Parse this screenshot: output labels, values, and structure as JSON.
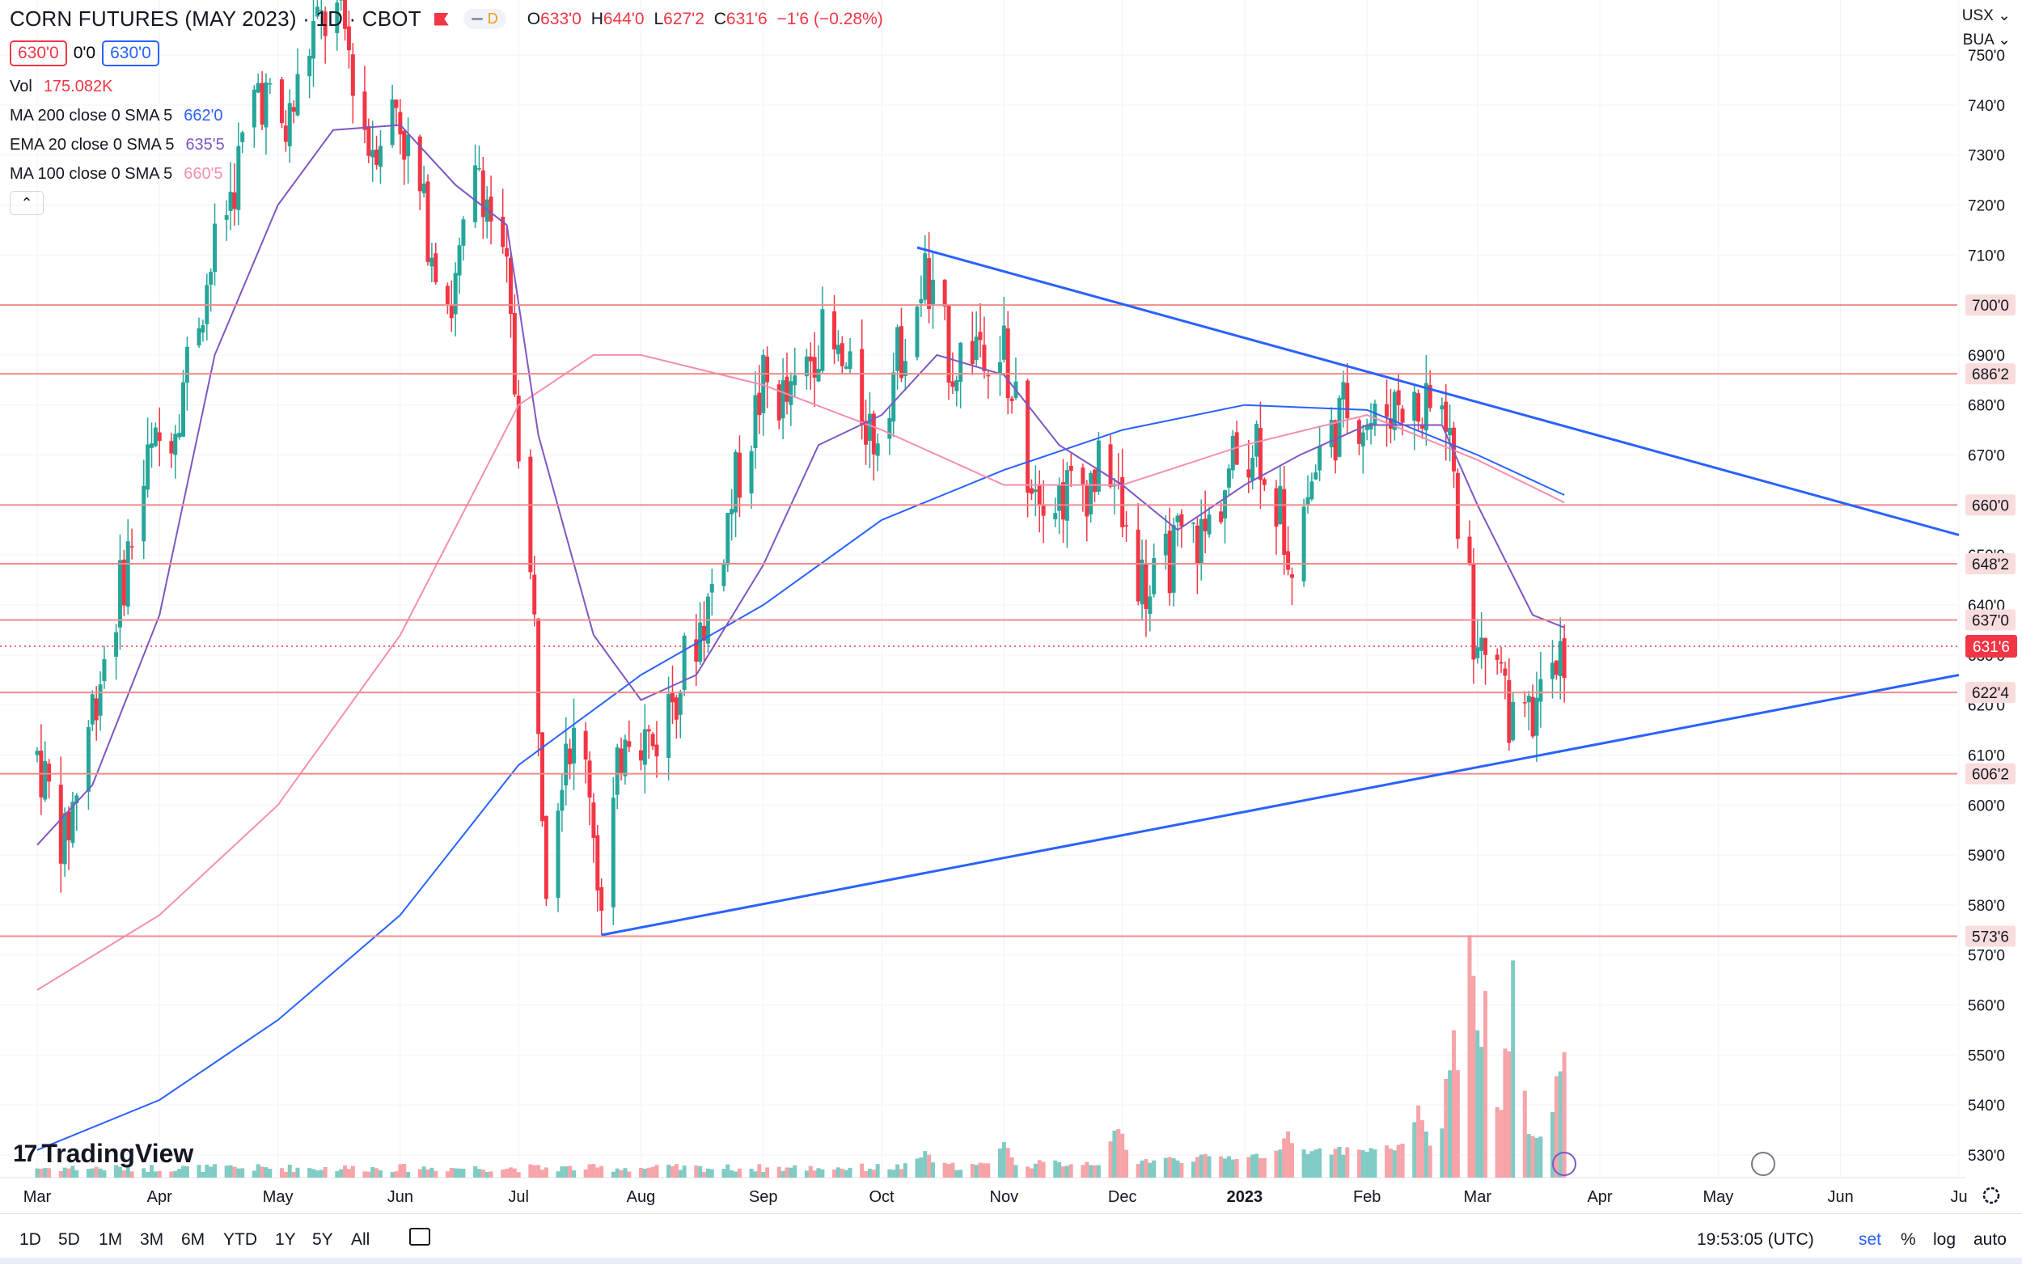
{
  "header": {
    "symbol": "CORN FUTURES (MAY 2023) · 1D · CBOT",
    "open_label": "O",
    "open": "633'0",
    "high_label": "H",
    "high": "644'0",
    "low_label": "L",
    "low": "627'2",
    "close_label": "C",
    "close": "631'6",
    "change": "−1'6 (−0.28%)",
    "session_badge": "D"
  },
  "price_boxes": {
    "sell": "630'0",
    "spread": "0'0",
    "buy": "630'0"
  },
  "indicators": [
    {
      "label": "Vol",
      "value": "175.082K",
      "color": "#f23645"
    },
    {
      "label": "MA 200 close 0 SMA 5",
      "value": "662'0",
      "color": "#2962ff"
    },
    {
      "label": "EMA 20 close 0 SMA 5",
      "value": "635'5",
      "color": "#7e57c2"
    },
    {
      "label": "MA 100 close 0 SMA 5",
      "value": "660'5",
      "color": "#f48fb1"
    }
  ],
  "collapse_glyph": "⌃",
  "top_right": {
    "currency": "USX ⌄",
    "unit": "BUA ⌄"
  },
  "brand": {
    "logo_mark": "17",
    "logo_text": "TradingView"
  },
  "bottom_bar": {
    "timeframes": [
      "1D",
      "5D",
      "1M",
      "3M",
      "6M",
      "YTD",
      "1Y",
      "5Y",
      "All"
    ],
    "clock": "19:53:05 (UTC)",
    "options": [
      "set",
      "%",
      "log",
      "auto"
    ]
  },
  "colors": {
    "up": "#26a69a",
    "down": "#f23645",
    "vol_up": "#80cbc4",
    "vol_down": "#f7a4a9",
    "hline": "#f28b8b",
    "trendline": "#2962ff",
    "ma200": "#2962ff",
    "ema20": "#7e57c2",
    "ma100": "#f48fb1",
    "grid": "#f0f3fa"
  },
  "chart_data": {
    "type": "candlestick",
    "y_axis": {
      "min": 525,
      "max": 752,
      "ticks": [
        530,
        540,
        550,
        560,
        570,
        580,
        590,
        600,
        610,
        620,
        630,
        640,
        650,
        660,
        670,
        680,
        690,
        700,
        710,
        720,
        730,
        740,
        750
      ]
    },
    "x_axis": {
      "labels": [
        {
          "label": "Mar",
          "date": "2022-03-01"
        },
        {
          "label": "Apr",
          "date": "2022-04-01"
        },
        {
          "label": "May",
          "date": "2022-05-01"
        },
        {
          "label": "Jun",
          "date": "2022-06-01"
        },
        {
          "label": "Jul",
          "date": "2022-07-01"
        },
        {
          "label": "Aug",
          "date": "2022-08-01"
        },
        {
          "label": "Sep",
          "date": "2022-09-01"
        },
        {
          "label": "Oct",
          "date": "2022-10-01"
        },
        {
          "label": "Nov",
          "date": "2022-11-01"
        },
        {
          "label": "Dec",
          "date": "2022-12-01"
        },
        {
          "label": "2023",
          "date": "2023-01-01"
        },
        {
          "label": "Feb",
          "date": "2023-02-01"
        },
        {
          "label": "Mar",
          "date": "2023-03-01"
        },
        {
          "label": "Apr",
          "date": "2023-04-01"
        },
        {
          "label": "May",
          "date": "2023-05-01"
        },
        {
          "label": "Jun",
          "date": "2023-06-01"
        },
        {
          "label": "Ju",
          "date": "2023-07-01"
        }
      ]
    },
    "horizontal_levels": [
      {
        "price": 700,
        "label": "700'0"
      },
      {
        "price": 686.25,
        "label": "686'2"
      },
      {
        "price": 660,
        "label": "660'0"
      },
      {
        "price": 648.25,
        "label": "648'2"
      },
      {
        "price": 637,
        "label": "637'0"
      },
      {
        "price": 622.5,
        "label": "622'4"
      },
      {
        "price": 606.25,
        "label": "606'2"
      },
      {
        "price": 573.75,
        "label": "573'6"
      }
    ],
    "last_price": {
      "price": 631.75,
      "label": "631'6"
    },
    "trendlines": [
      {
        "start": {
          "date": "2022-10-10",
          "price": 711.5
        },
        "end": {
          "date": "2023-07-01",
          "price": 654
        }
      },
      {
        "start": {
          "date": "2022-07-22",
          "price": 574
        },
        "end": {
          "date": "2023-07-01",
          "price": 626
        }
      }
    ],
    "price_path": [
      {
        "date": "2022-03-01",
        "price": 610
      },
      {
        "date": "2022-03-08",
        "price": 592
      },
      {
        "date": "2022-03-15",
        "price": 620
      },
      {
        "date": "2022-03-22",
        "price": 643
      },
      {
        "date": "2022-03-29",
        "price": 668
      },
      {
        "date": "2022-04-05",
        "price": 678
      },
      {
        "date": "2022-04-12",
        "price": 702
      },
      {
        "date": "2022-04-19",
        "price": 722
      },
      {
        "date": "2022-04-26",
        "price": 744
      },
      {
        "date": "2022-05-03",
        "price": 734
      },
      {
        "date": "2022-05-10",
        "price": 755
      },
      {
        "date": "2022-05-17",
        "price": 758
      },
      {
        "date": "2022-05-24",
        "price": 732
      },
      {
        "date": "2022-05-31",
        "price": 740
      },
      {
        "date": "2022-06-07",
        "price": 718
      },
      {
        "date": "2022-06-14",
        "price": 700
      },
      {
        "date": "2022-06-21",
        "price": 728
      },
      {
        "date": "2022-06-28",
        "price": 704
      },
      {
        "date": "2022-07-05",
        "price": 635
      },
      {
        "date": "2022-07-08",
        "price": 588
      },
      {
        "date": "2022-07-13",
        "price": 615
      },
      {
        "date": "2022-07-19",
        "price": 605
      },
      {
        "date": "2022-07-22",
        "price": 578
      },
      {
        "date": "2022-07-28",
        "price": 618
      },
      {
        "date": "2022-08-04",
        "price": 612
      },
      {
        "date": "2022-08-11",
        "price": 626
      },
      {
        "date": "2022-08-18",
        "price": 640
      },
      {
        "date": "2022-08-25",
        "price": 664
      },
      {
        "date": "2022-09-01",
        "price": 684
      },
      {
        "date": "2022-09-08",
        "price": 680
      },
      {
        "date": "2022-09-15",
        "price": 694
      },
      {
        "date": "2022-09-22",
        "price": 686
      },
      {
        "date": "2022-09-29",
        "price": 674
      },
      {
        "date": "2022-10-06",
        "price": 692
      },
      {
        "date": "2022-10-12",
        "price": 705
      },
      {
        "date": "2022-10-19",
        "price": 688
      },
      {
        "date": "2022-10-26",
        "price": 694
      },
      {
        "date": "2022-11-01",
        "price": 690
      },
      {
        "date": "2022-11-07",
        "price": 668
      },
      {
        "date": "2022-11-14",
        "price": 662
      },
      {
        "date": "2022-11-21",
        "price": 664
      },
      {
        "date": "2022-11-28",
        "price": 668
      },
      {
        "date": "2022-12-02",
        "price": 652
      },
      {
        "date": "2022-12-08",
        "price": 642
      },
      {
        "date": "2022-12-15",
        "price": 652
      },
      {
        "date": "2022-12-22",
        "price": 654
      },
      {
        "date": "2022-12-29",
        "price": 668
      },
      {
        "date": "2023-01-04",
        "price": 674
      },
      {
        "date": "2023-01-09",
        "price": 660
      },
      {
        "date": "2023-01-13",
        "price": 652
      },
      {
        "date": "2023-01-20",
        "price": 670
      },
      {
        "date": "2023-01-27",
        "price": 680
      },
      {
        "date": "2023-02-03",
        "price": 676
      },
      {
        "date": "2023-02-09",
        "price": 682
      },
      {
        "date": "2023-02-15",
        "price": 677
      },
      {
        "date": "2023-02-21",
        "price": 680
      },
      {
        "date": "2023-02-24",
        "price": 658
      },
      {
        "date": "2023-03-01",
        "price": 630
      },
      {
        "date": "2023-03-06",
        "price": 634
      },
      {
        "date": "2023-03-10",
        "price": 614
      },
      {
        "date": "2023-03-15",
        "price": 618
      },
      {
        "date": "2023-03-20",
        "price": 628
      },
      {
        "date": "2023-03-23",
        "price": 631.75
      }
    ],
    "ma200_path": [
      {
        "date": "2022-03-01",
        "price": 531
      },
      {
        "date": "2022-04-01",
        "price": 541
      },
      {
        "date": "2022-05-01",
        "price": 557
      },
      {
        "date": "2022-06-01",
        "price": 578
      },
      {
        "date": "2022-07-01",
        "price": 608
      },
      {
        "date": "2022-08-01",
        "price": 626
      },
      {
        "date": "2022-09-01",
        "price": 640
      },
      {
        "date": "2022-10-01",
        "price": 657
      },
      {
        "date": "2022-11-01",
        "price": 667
      },
      {
        "date": "2022-12-01",
        "price": 675
      },
      {
        "date": "2023-01-01",
        "price": 680
      },
      {
        "date": "2023-02-01",
        "price": 679
      },
      {
        "date": "2023-03-01",
        "price": 670
      },
      {
        "date": "2023-03-23",
        "price": 662
      }
    ],
    "ma100_path": [
      {
        "date": "2022-03-01",
        "price": 563
      },
      {
        "date": "2022-04-01",
        "price": 578
      },
      {
        "date": "2022-05-01",
        "price": 600
      },
      {
        "date": "2022-06-01",
        "price": 634
      },
      {
        "date": "2022-07-01",
        "price": 680
      },
      {
        "date": "2022-07-20",
        "price": 690
      },
      {
        "date": "2022-08-01",
        "price": 690
      },
      {
        "date": "2022-09-01",
        "price": 684
      },
      {
        "date": "2022-10-01",
        "price": 675
      },
      {
        "date": "2022-11-01",
        "price": 664
      },
      {
        "date": "2022-12-01",
        "price": 664
      },
      {
        "date": "2023-01-01",
        "price": 672
      },
      {
        "date": "2023-02-01",
        "price": 678
      },
      {
        "date": "2023-03-01",
        "price": 669
      },
      {
        "date": "2023-03-23",
        "price": 660.5
      }
    ],
    "ema20_path": [
      {
        "date": "2022-03-01",
        "price": 592
      },
      {
        "date": "2022-03-15",
        "price": 604
      },
      {
        "date": "2022-04-01",
        "price": 638
      },
      {
        "date": "2022-04-15",
        "price": 690
      },
      {
        "date": "2022-05-01",
        "price": 720
      },
      {
        "date": "2022-05-15",
        "price": 735
      },
      {
        "date": "2022-06-01",
        "price": 736
      },
      {
        "date": "2022-06-15",
        "price": 724
      },
      {
        "date": "2022-06-28",
        "price": 716
      },
      {
        "date": "2022-07-06",
        "price": 674
      },
      {
        "date": "2022-07-20",
        "price": 634
      },
      {
        "date": "2022-08-01",
        "price": 621
      },
      {
        "date": "2022-08-15",
        "price": 626
      },
      {
        "date": "2022-09-01",
        "price": 648
      },
      {
        "date": "2022-09-15",
        "price": 672
      },
      {
        "date": "2022-10-01",
        "price": 678
      },
      {
        "date": "2022-10-15",
        "price": 690
      },
      {
        "date": "2022-11-01",
        "price": 686
      },
      {
        "date": "2022-11-15",
        "price": 672
      },
      {
        "date": "2022-12-01",
        "price": 664
      },
      {
        "date": "2022-12-15",
        "price": 655
      },
      {
        "date": "2023-01-01",
        "price": 664
      },
      {
        "date": "2023-01-15",
        "price": 670
      },
      {
        "date": "2023-02-01",
        "price": 676
      },
      {
        "date": "2023-02-20",
        "price": 676
      },
      {
        "date": "2023-03-01",
        "price": 660
      },
      {
        "date": "2023-03-15",
        "price": 638
      },
      {
        "date": "2023-03-23",
        "price": 635.5
      }
    ],
    "volume_spikes": [
      {
        "date": "2022-10-12",
        "rel": 0.12
      },
      {
        "date": "2022-11-01",
        "rel": 0.14
      },
      {
        "date": "2022-11-30",
        "rel": 0.23
      },
      {
        "date": "2023-01-12",
        "rel": 0.18
      },
      {
        "date": "2023-02-14",
        "rel": 0.3
      },
      {
        "date": "2023-02-23",
        "rel": 0.6
      },
      {
        "date": "2023-02-27",
        "rel": 1.0
      },
      {
        "date": "2023-03-03",
        "rel": 0.72
      },
      {
        "date": "2023-03-10",
        "rel": 0.8
      },
      {
        "date": "2023-03-23",
        "rel": 0.64
      }
    ]
  }
}
